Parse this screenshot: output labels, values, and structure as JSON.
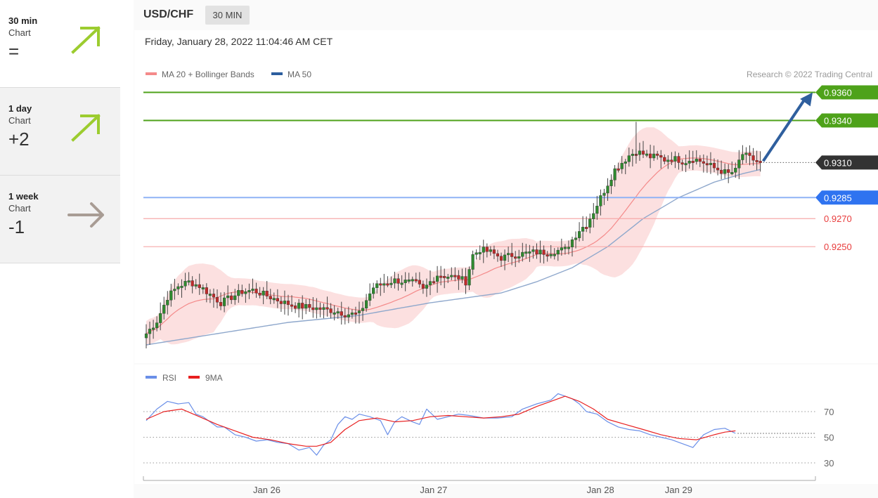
{
  "sidebar": {
    "items": [
      {
        "label": "30 min",
        "sub": "Chart",
        "value": "=",
        "arrow": "up",
        "color": "#9ccc2f"
      },
      {
        "label": "1 day",
        "sub": "Chart",
        "value": "+2",
        "arrow": "up",
        "color": "#9ccc2f"
      },
      {
        "label": "1 week",
        "sub": "Chart",
        "value": "-1",
        "arrow": "right",
        "color": "#a89c94"
      }
    ]
  },
  "header": {
    "pair": "USD/CHF",
    "timeframe": "30 MIN",
    "datetime": "Friday, January 28, 2022 11:04:46 AM CET"
  },
  "chart_data": {
    "type": "candlestick",
    "legend": [
      {
        "name": "MA 20 + Bollinger Bands",
        "color": "#f48a8a"
      },
      {
        "name": "MA 50",
        "color": "#2c5e9e"
      }
    ],
    "copyright": "Research © 2022 Trading Central",
    "ylim": [
      0.918,
      0.9373
    ],
    "price_levels": [
      {
        "value": 0.936,
        "label": "0.9360",
        "type": "resistance",
        "color": "#4ea21a"
      },
      {
        "value": 0.934,
        "label": "0.9340",
        "type": "resistance",
        "color": "#4ea21a"
      },
      {
        "value": 0.931,
        "label": "0.9310",
        "type": "last",
        "color": "#333333"
      },
      {
        "value": 0.9285,
        "label": "0.9285",
        "type": "pivot",
        "color": "#2f73f0"
      },
      {
        "value": 0.927,
        "label": "0.9270",
        "type": "support",
        "color": "#e83c3c"
      },
      {
        "value": 0.925,
        "label": "0.9250",
        "type": "support",
        "color": "#e83c3c"
      }
    ],
    "arrow": {
      "from_price": 0.9311,
      "to_price": 0.936,
      "direction": "up"
    },
    "price_path": [
      [
        0,
        0.9188
      ],
      [
        3,
        0.9197
      ],
      [
        6,
        0.9214
      ],
      [
        9,
        0.9222
      ],
      [
        12,
        0.9225
      ],
      [
        15,
        0.9222
      ],
      [
        18,
        0.9216
      ],
      [
        21,
        0.921
      ],
      [
        24,
        0.9214
      ],
      [
        27,
        0.9218
      ],
      [
        30,
        0.9219
      ],
      [
        33,
        0.9216
      ],
      [
        36,
        0.9213
      ],
      [
        39,
        0.921
      ],
      [
        42,
        0.9208
      ],
      [
        45,
        0.9207
      ],
      [
        48,
        0.9206
      ],
      [
        51,
        0.9205
      ],
      [
        54,
        0.9204
      ],
      [
        56,
        0.9202
      ],
      [
        58,
        0.9202
      ],
      [
        60,
        0.9202
      ],
      [
        62,
        0.9212
      ],
      [
        64,
        0.9221
      ],
      [
        67,
        0.9224
      ],
      [
        70,
        0.9226
      ],
      [
        73,
        0.9225
      ],
      [
        76,
        0.9224
      ],
      [
        78,
        0.9219
      ],
      [
        80,
        0.9225
      ],
      [
        82,
        0.923
      ],
      [
        85,
        0.9229
      ],
      [
        88,
        0.9228
      ],
      [
        90,
        0.9225
      ],
      [
        92,
        0.9244
      ],
      [
        94,
        0.9248
      ],
      [
        97,
        0.9246
      ],
      [
        100,
        0.9242
      ],
      [
        103,
        0.9244
      ],
      [
        106,
        0.9245
      ],
      [
        109,
        0.9246
      ],
      [
        112,
        0.9246
      ],
      [
        115,
        0.9247
      ],
      [
        118,
        0.9248
      ],
      [
        120,
        0.9255
      ],
      [
        122,
        0.9262
      ],
      [
        124,
        0.9266
      ],
      [
        126,
        0.9275
      ],
      [
        128,
        0.9285
      ],
      [
        130,
        0.9295
      ],
      [
        132,
        0.9305
      ],
      [
        134,
        0.931
      ],
      [
        136,
        0.9315
      ],
      [
        138,
        0.9318
      ],
      [
        140,
        0.9316
      ],
      [
        142,
        0.9314
      ],
      [
        144,
        0.9314
      ],
      [
        146,
        0.9312
      ],
      [
        148,
        0.9313
      ],
      [
        150,
        0.9312
      ],
      [
        152,
        0.9311
      ],
      [
        154,
        0.9313
      ],
      [
        156,
        0.9311
      ],
      [
        158,
        0.9309
      ],
      [
        160,
        0.9306
      ],
      [
        162,
        0.9304
      ],
      [
        164,
        0.9302
      ],
      [
        166,
        0.9304
      ],
      [
        167,
        0.9311
      ],
      [
        168,
        0.9316
      ],
      [
        170,
        0.9313
      ],
      [
        172,
        0.9311
      ],
      [
        173,
        0.931
      ]
    ],
    "ma50_path": [
      [
        0,
        0.918
      ],
      [
        20,
        0.9188
      ],
      [
        40,
        0.9196
      ],
      [
        60,
        0.9201
      ],
      [
        80,
        0.921
      ],
      [
        100,
        0.9217
      ],
      [
        110,
        0.9225
      ],
      [
        120,
        0.9235
      ],
      [
        130,
        0.925
      ],
      [
        140,
        0.927
      ],
      [
        150,
        0.9285
      ],
      [
        160,
        0.9296
      ],
      [
        168,
        0.9302
      ],
      [
        173,
        0.9305
      ]
    ],
    "x_ticks": [
      {
        "label": "Jan 26",
        "bar": 30
      },
      {
        "label": "Jan 27",
        "bar": 77
      },
      {
        "label": "Jan 28",
        "bar": 124
      },
      {
        "label": "Jan 29",
        "bar": 146
      }
    ]
  },
  "rsi_data": {
    "legend": [
      {
        "name": "RSI",
        "color": "#6a8fe8"
      },
      {
        "name": "9MA",
        "color": "#e82020"
      }
    ],
    "ylim": [
      20,
      90
    ],
    "levels": [
      {
        "value": 70,
        "label": "70"
      },
      {
        "value": 50,
        "label": "50"
      },
      {
        "value": 30,
        "label": "30"
      }
    ],
    "rsi": [
      [
        0,
        63
      ],
      [
        3,
        72
      ],
      [
        6,
        78
      ],
      [
        9,
        76
      ],
      [
        12,
        77
      ],
      [
        14,
        68
      ],
      [
        16,
        66
      ],
      [
        18,
        62
      ],
      [
        20,
        58
      ],
      [
        22,
        58
      ],
      [
        25,
        52
      ],
      [
        28,
        50
      ],
      [
        31,
        47
      ],
      [
        34,
        48
      ],
      [
        37,
        46
      ],
      [
        40,
        45
      ],
      [
        43,
        40
      ],
      [
        46,
        42
      ],
      [
        48,
        36
      ],
      [
        50,
        44
      ],
      [
        52,
        48
      ],
      [
        54,
        60
      ],
      [
        56,
        66
      ],
      [
        58,
        64
      ],
      [
        60,
        68
      ],
      [
        63,
        66
      ],
      [
        66,
        63
      ],
      [
        68,
        52
      ],
      [
        70,
        62
      ],
      [
        72,
        66
      ],
      [
        75,
        62
      ],
      [
        77,
        60
      ],
      [
        79,
        72
      ],
      [
        82,
        64
      ],
      [
        85,
        66
      ],
      [
        88,
        68
      ],
      [
        91,
        67
      ],
      [
        95,
        65
      ],
      [
        99,
        65
      ],
      [
        103,
        66
      ],
      [
        106,
        72
      ],
      [
        110,
        76
      ],
      [
        114,
        79
      ],
      [
        116,
        84
      ],
      [
        118,
        82
      ],
      [
        120,
        80
      ],
      [
        122,
        76
      ],
      [
        124,
        70
      ],
      [
        127,
        68
      ],
      [
        130,
        62
      ],
      [
        133,
        58
      ],
      [
        136,
        56
      ],
      [
        139,
        55
      ],
      [
        142,
        52
      ],
      [
        145,
        50
      ],
      [
        148,
        48
      ],
      [
        151,
        45
      ],
      [
        154,
        42
      ],
      [
        157,
        52
      ],
      [
        160,
        56
      ],
      [
        163,
        57
      ],
      [
        166,
        53
      ]
    ],
    "ma9": [
      [
        0,
        64
      ],
      [
        5,
        70
      ],
      [
        10,
        72
      ],
      [
        15,
        66
      ],
      [
        20,
        60
      ],
      [
        25,
        55
      ],
      [
        30,
        50
      ],
      [
        35,
        48
      ],
      [
        40,
        45
      ],
      [
        45,
        43
      ],
      [
        48,
        43
      ],
      [
        52,
        46
      ],
      [
        56,
        56
      ],
      [
        60,
        63
      ],
      [
        65,
        65
      ],
      [
        70,
        62
      ],
      [
        75,
        63
      ],
      [
        80,
        66
      ],
      [
        85,
        67
      ],
      [
        90,
        66
      ],
      [
        95,
        65
      ],
      [
        100,
        66
      ],
      [
        105,
        68
      ],
      [
        110,
        74
      ],
      [
        114,
        78
      ],
      [
        118,
        82
      ],
      [
        122,
        78
      ],
      [
        126,
        72
      ],
      [
        130,
        64
      ],
      [
        135,
        60
      ],
      [
        140,
        56
      ],
      [
        145,
        52
      ],
      [
        150,
        49
      ],
      [
        155,
        48
      ],
      [
        160,
        52
      ],
      [
        163,
        54
      ],
      [
        166,
        55
      ]
    ]
  }
}
